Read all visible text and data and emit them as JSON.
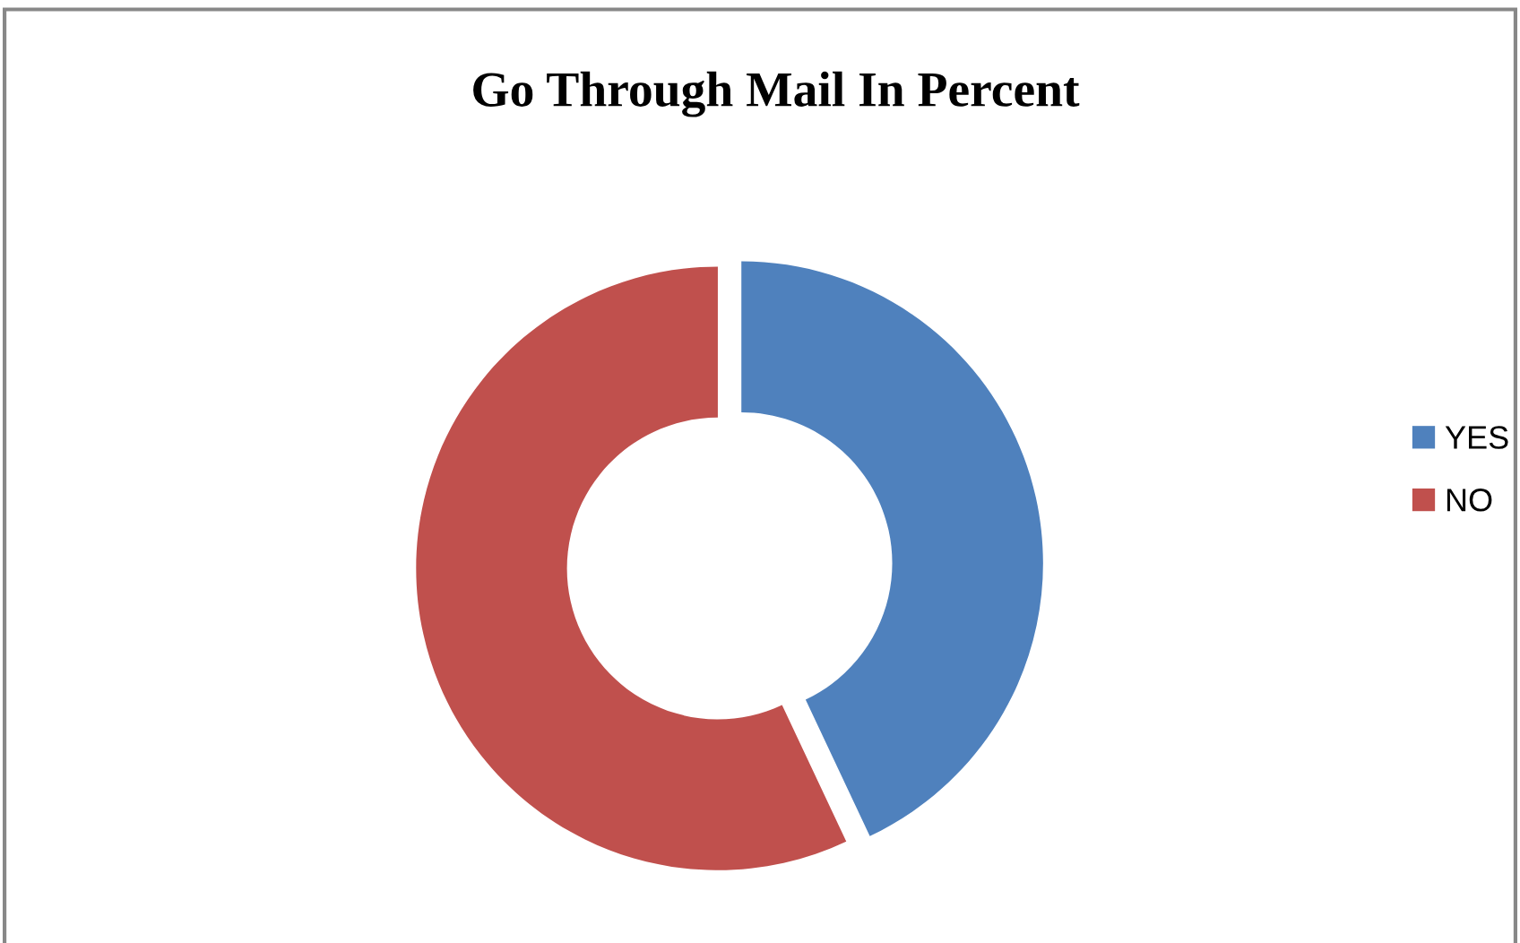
{
  "chart_data": {
    "type": "donut",
    "title": "Go Through Mail In Percent",
    "categories": [
      "YES",
      "NO"
    ],
    "values": [
      43,
      57
    ],
    "colors": [
      "#4f81bd",
      "#c0504d"
    ],
    "legend": "right"
  }
}
